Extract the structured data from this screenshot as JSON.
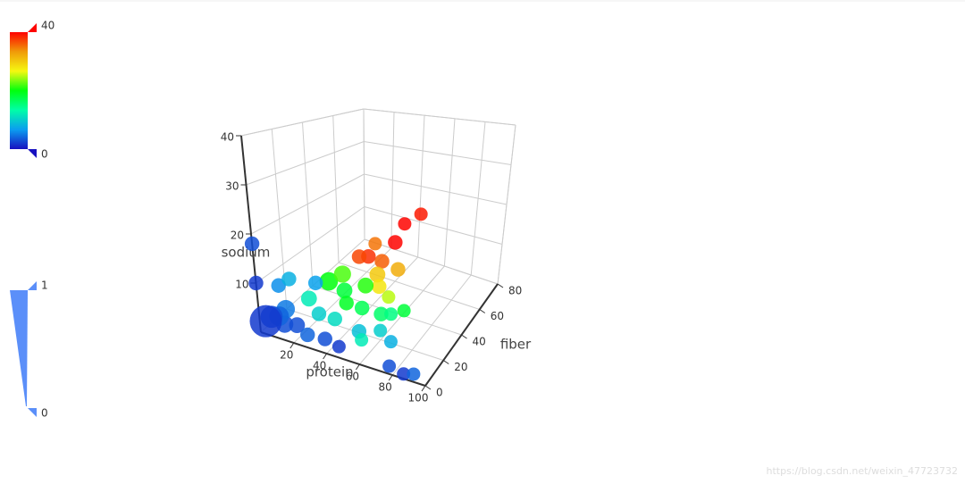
{
  "chart_data": {
    "type": "scatter3D",
    "x_label": "protein",
    "y_label": "fiber",
    "z_label": "sodium",
    "xlim": [
      0,
      100
    ],
    "xticks": [
      20,
      40,
      60,
      80,
      100
    ],
    "ylim": [
      0,
      80
    ],
    "yticks": [
      0,
      20,
      40,
      60,
      80
    ],
    "zlim": [
      0,
      40
    ],
    "zticks": [
      10,
      20,
      30,
      40
    ],
    "grid": true,
    "visual_map": {
      "color": {
        "range": [
          0,
          40
        ],
        "colors": [
          "#1710c0",
          "#0b9df0",
          "#00fea8",
          "#00ff0d",
          "#f5f811",
          "#f09a09",
          "#fe0300"
        ]
      },
      "size": {
        "range": [
          0,
          1
        ],
        "color": "#5b8ff9"
      }
    },
    "series": [
      {
        "x": [
          38,
          45,
          40,
          35,
          30,
          28,
          33,
          40,
          45,
          55,
          50,
          20,
          25,
          30,
          35,
          45,
          55,
          60,
          65,
          40,
          15,
          25,
          35,
          50,
          60,
          70,
          55,
          0,
          0,
          5,
          3,
          20,
          12,
          18,
          25,
          35,
          45,
          75,
          85,
          90,
          10,
          8,
          5,
          2
        ],
        "y": [
          70,
          75,
          60,
          55,
          50,
          45,
          52,
          45,
          40,
          35,
          50,
          30,
          35,
          30,
          25,
          25,
          28,
          30,
          35,
          35,
          20,
          15,
          15,
          15,
          20,
          15,
          10,
          0,
          0,
          10,
          20,
          20,
          4,
          6,
          5,
          6,
          4,
          5,
          3,
          5,
          8,
          5,
          3,
          2
        ],
        "z": [
          12,
          14,
          10,
          6,
          8,
          9,
          11,
          6,
          5,
          5,
          7,
          6,
          7,
          5,
          4,
          4,
          3,
          3,
          3,
          6,
          4,
          3,
          3,
          2,
          2,
          2,
          2,
          18,
          10,
          8,
          7,
          8,
          2,
          2,
          1,
          1,
          1,
          0,
          0,
          0,
          4,
          3,
          3,
          2
        ],
        "color_values": [
          40,
          39,
          40,
          36,
          38,
          37,
          35,
          30,
          28,
          25,
          32,
          20,
          22,
          18,
          19,
          17,
          16,
          15,
          18,
          21,
          12,
          10,
          11,
          9,
          10,
          8,
          12,
          3,
          2,
          6,
          8,
          7,
          3,
          3,
          4,
          3,
          2,
          3,
          2,
          4,
          5,
          4,
          3,
          2
        ],
        "size_values": [
          0.25,
          0.25,
          0.3,
          0.3,
          0.3,
          0.3,
          0.25,
          0.35,
          0.3,
          0.25,
          0.3,
          0.45,
          0.4,
          0.35,
          0.3,
          0.3,
          0.3,
          0.25,
          0.25,
          0.35,
          0.35,
          0.3,
          0.3,
          0.3,
          0.25,
          0.25,
          0.25,
          0.3,
          0.3,
          0.3,
          0.3,
          0.3,
          0.4,
          0.35,
          0.3,
          0.3,
          0.25,
          0.25,
          0.25,
          0.25,
          0.45,
          0.5,
          0.6,
          1
        ]
      }
    ],
    "watermark": "https://blog.csdn.net/weixin_47723732"
  }
}
